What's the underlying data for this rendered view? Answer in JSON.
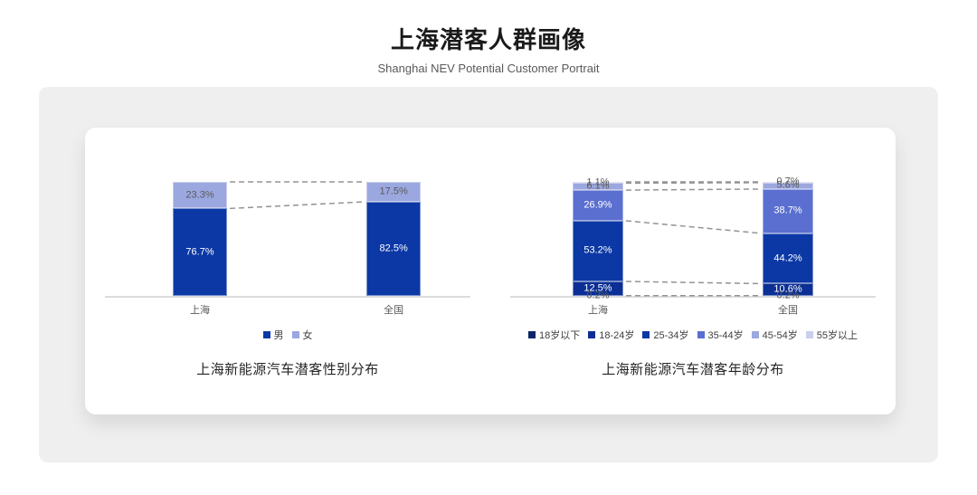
{
  "page": {
    "title": "上海潜客人群画像",
    "subtitle": "Shanghai NEV Potential Customer Portrait"
  },
  "colors": {
    "panel_background": "#efefef",
    "card_background": "#ffffff",
    "axis_line": "#dcdcdc",
    "connector_dash": "#939393",
    "label_dark": "#595959",
    "label_light": "#ffffff"
  },
  "chart_data": [
    {
      "type": "bar",
      "stacked": true,
      "title": "上海新能源汽车潜客性别分布",
      "categories": [
        "上海",
        "全国"
      ],
      "series": [
        {
          "name": "男",
          "values": [
            76.7,
            82.5
          ],
          "color": "#0C38A6"
        },
        {
          "name": "女",
          "values": [
            23.3,
            17.5
          ],
          "color": "#9BA7DF"
        }
      ],
      "unit": "%",
      "ylim": [
        0,
        100
      ],
      "grid": false,
      "legend_position": "bottom",
      "annotations": "dashed connector lines between matching segment boundaries"
    },
    {
      "type": "bar",
      "stacked": true,
      "title": "上海新能源汽车潜客年龄分布",
      "categories": [
        "上海",
        "全国"
      ],
      "series": [
        {
          "name": "18岁以下",
          "values": [
            0.2,
            0.2
          ],
          "color": "#0A2668"
        },
        {
          "name": "18-24岁",
          "values": [
            12.5,
            10.6
          ],
          "color": "#0B2F94"
        },
        {
          "name": "25-34岁",
          "values": [
            53.2,
            44.2
          ],
          "color": "#0C38A6"
        },
        {
          "name": "35-44岁",
          "values": [
            26.9,
            38.7
          ],
          "color": "#5A6FD0"
        },
        {
          "name": "45-54岁",
          "values": [
            6.1,
            5.6
          ],
          "color": "#9BA7DF"
        },
        {
          "name": "55岁以上",
          "values": [
            1.1,
            0.7
          ],
          "color": "#C9CFEC"
        }
      ],
      "unit": "%",
      "ylim": [
        0,
        100
      ],
      "grid": false,
      "legend_position": "bottom",
      "annotations": "dashed connector lines between matching segment boundaries"
    }
  ]
}
